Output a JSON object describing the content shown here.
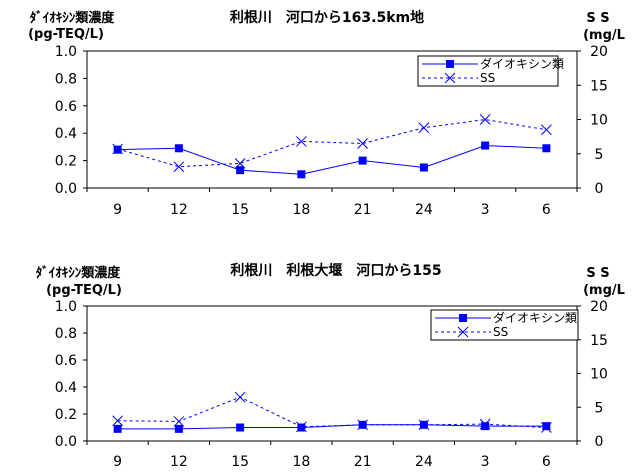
{
  "chart_data": [
    {
      "type": "line",
      "title": "利根川　河口から163.5km地",
      "ylabel_left": [
        "ﾀﾞｲｵｷｼﾝ類濃度",
        "(pg-TEQ/L)"
      ],
      "ylabel_right": [
        "S S",
        "(mg/L"
      ],
      "categories": [
        "9",
        "12",
        "15",
        "18",
        "21",
        "24",
        "3",
        "6"
      ],
      "ylim_left": [
        0,
        1.0
      ],
      "yticks_left": [
        "0.0",
        "0.2",
        "0.4",
        "0.6",
        "0.8",
        "1.0"
      ],
      "ylim_right": [
        0,
        20
      ],
      "yticks_right": [
        "0",
        "5",
        "10",
        "15",
        "20"
      ],
      "legend_position": "top-right",
      "series": [
        {
          "name": "ダイオキシン類",
          "axis": "left",
          "color": "#0000ff",
          "style": "solid",
          "marker": "square",
          "values": [
            0.28,
            0.29,
            0.13,
            0.1,
            0.2,
            0.15,
            0.31,
            0.29
          ]
        },
        {
          "name": "SS",
          "axis": "right",
          "color": "#0000ff",
          "style": "dashed",
          "marker": "x",
          "values": [
            5.7,
            3.1,
            3.6,
            6.8,
            6.5,
            8.8,
            10.0,
            8.5
          ]
        }
      ]
    },
    {
      "type": "line",
      "title": "利根川　利根大堰　河口から155",
      "ylabel_left": [
        "ﾀﾞｲｵｷｼﾝ類濃度",
        "(pg-TEQ/L)"
      ],
      "ylabel_right": [
        "S S",
        "(mg/L"
      ],
      "categories": [
        "9",
        "12",
        "15",
        "18",
        "21",
        "24",
        "3",
        "6"
      ],
      "ylim_left": [
        0,
        1.0
      ],
      "yticks_left": [
        "0.0",
        "0.2",
        "0.4",
        "0.6",
        "0.8",
        "1.0"
      ],
      "ylim_right": [
        0,
        20
      ],
      "yticks_right": [
        "0",
        "5",
        "10",
        "15",
        "20"
      ],
      "legend_position": "top-right",
      "series": [
        {
          "name": "ダイオキシン類",
          "axis": "left",
          "color": "#0000ff",
          "style": "solid",
          "marker": "square",
          "values": [
            0.09,
            0.09,
            0.1,
            0.1,
            0.12,
            0.12,
            0.11,
            0.11
          ]
        },
        {
          "name": "SS",
          "axis": "right",
          "color": "#0000ff",
          "style": "dashed",
          "marker": "x",
          "values": [
            3.0,
            2.9,
            6.5,
            2.1,
            2.4,
            2.4,
            2.5,
            2.0
          ]
        }
      ]
    }
  ]
}
